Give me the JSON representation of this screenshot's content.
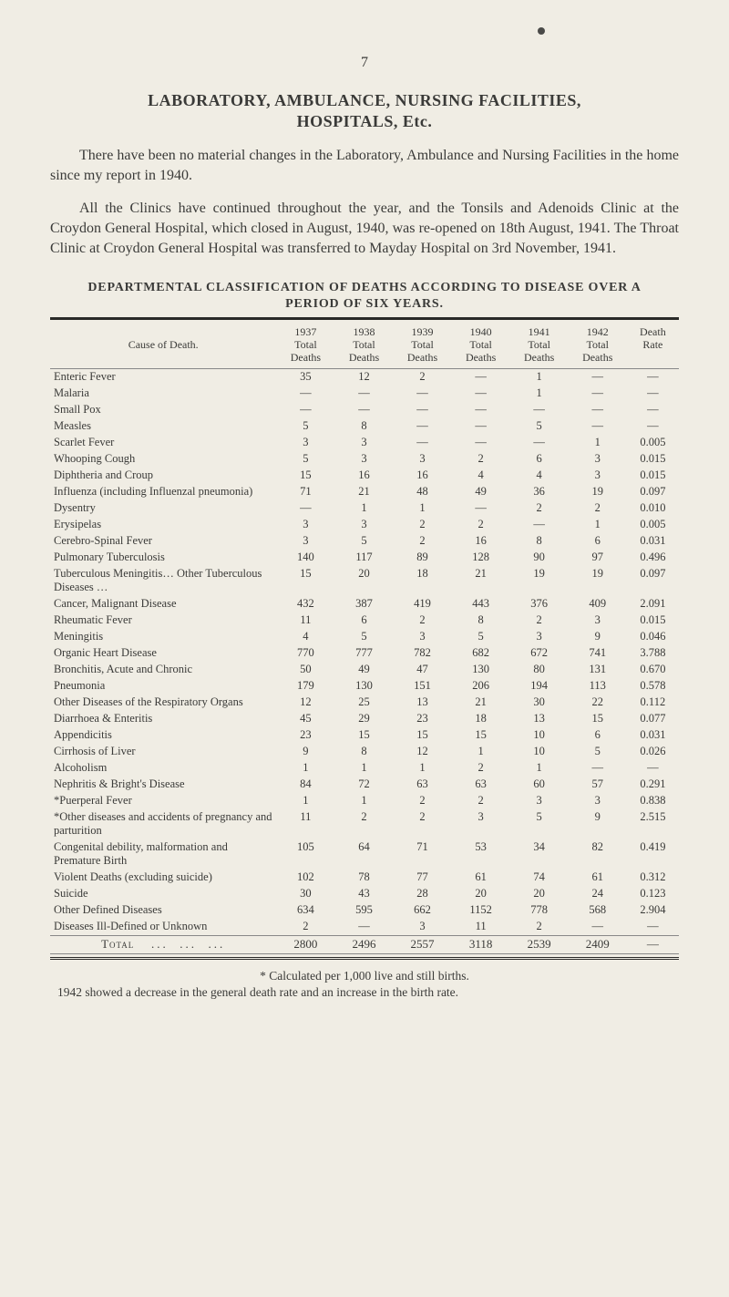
{
  "page_number": "7",
  "heading_line1": "LABORATORY, AMBULANCE, NURSING FACILITIES,",
  "heading_line2": "HOSPITALS, Etc.",
  "paragraphs": [
    "There have been no material changes in the Laboratory, Ambulance and Nursing Facilities in the home since my report in 1940.",
    "All the Clinics have continued throughout the year, and the Tonsils and Adenoids Clinic at the Croydon General Hospital, which closed in August, 1940, was re-opened on 18th August, 1941. The Throat Clinic at Croydon General Hospital was transferred to Mayday Hospital on 3rd November, 1941."
  ],
  "section_title_line1": "DEPARTMENTAL CLASSIFICATION OF DEATHS ACCORDING TO DISEASE OVER A",
  "section_title_line2": "PERIOD OF SIX YEARS.",
  "table": {
    "header_cause": "Cause of Death.",
    "header_years": [
      {
        "year": "1937",
        "sub": "Total\nDeaths"
      },
      {
        "year": "1938",
        "sub": "Total\nDeaths"
      },
      {
        "year": "1939",
        "sub": "Total\nDeaths"
      },
      {
        "year": "1940",
        "sub": "Total\nDeaths"
      },
      {
        "year": "1941",
        "sub": "Total\nDeaths"
      },
      {
        "year": "1942",
        "sub": "Total\nDeaths"
      }
    ],
    "header_rate": "Death\nRate",
    "rows": [
      {
        "cause": "Enteric Fever",
        "v": [
          "35",
          "12",
          "2",
          "—",
          "1",
          "—",
          "—"
        ]
      },
      {
        "cause": "Malaria",
        "v": [
          "—",
          "—",
          "—",
          "—",
          "1",
          "—",
          "—"
        ]
      },
      {
        "cause": "Small Pox",
        "v": [
          "—",
          "—",
          "—",
          "—",
          "—",
          "—",
          "—"
        ]
      },
      {
        "cause": "Measles",
        "v": [
          "5",
          "8",
          "—",
          "—",
          "5",
          "—",
          "—"
        ]
      },
      {
        "cause": "Scarlet Fever",
        "v": [
          "3",
          "3",
          "—",
          "—",
          "—",
          "1",
          "0.005"
        ]
      },
      {
        "cause": "Whooping Cough",
        "v": [
          "5",
          "3",
          "3",
          "2",
          "6",
          "3",
          "0.015"
        ]
      },
      {
        "cause": "Diphtheria and Croup",
        "v": [
          "15",
          "16",
          "16",
          "4",
          "4",
          "3",
          "0.015"
        ]
      },
      {
        "cause": "Influenza (including Influenzal pneumonia)",
        "v": [
          "71",
          "21",
          "48",
          "49",
          "36",
          "19",
          "0.097"
        ]
      },
      {
        "cause": "Dysentry",
        "v": [
          "—",
          "1",
          "1",
          "—",
          "2",
          "2",
          "0.010"
        ]
      },
      {
        "cause": "Erysipelas",
        "v": [
          "3",
          "3",
          "2",
          "2",
          "—",
          "1",
          "0.005"
        ]
      },
      {
        "cause": "Cerebro-Spinal Fever",
        "v": [
          "3",
          "5",
          "2",
          "16",
          "8",
          "6",
          "0.031"
        ]
      },
      {
        "cause": "Pulmonary Tuberculosis",
        "v": [
          "140",
          "117",
          "89",
          "128",
          "90",
          "97",
          "0.496"
        ]
      },
      {
        "cause": "Tuberculous Meningitis… Other Tuberculous Diseases …",
        "v": [
          "15",
          "20",
          "18",
          "21",
          "19",
          "19",
          "0.097"
        ]
      },
      {
        "cause": "Cancer, Malignant Disease",
        "v": [
          "432",
          "387",
          "419",
          "443",
          "376",
          "409",
          "2.091"
        ]
      },
      {
        "cause": "Rheumatic Fever",
        "v": [
          "11",
          "6",
          "2",
          "8",
          "2",
          "3",
          "0.015"
        ]
      },
      {
        "cause": "Meningitis",
        "v": [
          "4",
          "5",
          "3",
          "5",
          "3",
          "9",
          "0.046"
        ]
      },
      {
        "cause": "Organic Heart Disease",
        "v": [
          "770",
          "777",
          "782",
          "682",
          "672",
          "741",
          "3.788"
        ]
      },
      {
        "cause": "Bronchitis, Acute and Chronic",
        "v": [
          "50",
          "49",
          "47",
          "130",
          "80",
          "131",
          "0.670"
        ]
      },
      {
        "cause": "Pneumonia",
        "v": [
          "179",
          "130",
          "151",
          "206",
          "194",
          "113",
          "0.578"
        ]
      },
      {
        "cause": "Other Diseases of the Respiratory Organs",
        "v": [
          "12",
          "25",
          "13",
          "21",
          "30",
          "22",
          "0.112"
        ]
      },
      {
        "cause": "Diarrhoea & Enteritis",
        "v": [
          "45",
          "29",
          "23",
          "18",
          "13",
          "15",
          "0.077"
        ]
      },
      {
        "cause": "Appendicitis",
        "v": [
          "23",
          "15",
          "15",
          "15",
          "10",
          "6",
          "0.031"
        ]
      },
      {
        "cause": "Cirrhosis of Liver",
        "v": [
          "9",
          "8",
          "12",
          "1",
          "10",
          "5",
          "0.026"
        ]
      },
      {
        "cause": "Alcoholism",
        "v": [
          "1",
          "1",
          "1",
          "2",
          "1",
          "—",
          "—"
        ]
      },
      {
        "cause": "Nephritis & Bright's Disease",
        "v": [
          "84",
          "72",
          "63",
          "63",
          "60",
          "57",
          "0.291"
        ]
      },
      {
        "cause": "*Puerperal Fever",
        "v": [
          "1",
          "1",
          "2",
          "2",
          "3",
          "3",
          "0.838"
        ]
      },
      {
        "cause": "*Other diseases and accidents of pregnancy and parturition",
        "v": [
          "11",
          "2",
          "2",
          "3",
          "5",
          "9",
          "2.515"
        ]
      },
      {
        "cause": "Congenital debility, malformation and Premature Birth",
        "v": [
          "105",
          "64",
          "71",
          "53",
          "34",
          "82",
          "0.419"
        ]
      },
      {
        "cause": "Violent Deaths (excluding suicide)",
        "v": [
          "102",
          "78",
          "77",
          "61",
          "74",
          "61",
          "0.312"
        ]
      },
      {
        "cause": "Suicide",
        "v": [
          "30",
          "43",
          "28",
          "20",
          "20",
          "24",
          "0.123"
        ]
      },
      {
        "cause": "Other Defined Diseases",
        "v": [
          "634",
          "595",
          "662",
          "1152",
          "778",
          "568",
          "2.904"
        ]
      },
      {
        "cause": "Diseases Ill-Defined or Unknown",
        "v": [
          "2",
          "—",
          "3",
          "11",
          "2",
          "—",
          "—"
        ]
      }
    ],
    "total_label": "Total",
    "totals": [
      "2800",
      "2496",
      "2557",
      "3118",
      "2539",
      "2409",
      "—"
    ]
  },
  "footnote_line1": "* Calculated per 1,000 live and still births.",
  "footnote_line2": "1942 showed a decrease in the general death rate and an increase in the birth rate.",
  "styling": {
    "bg_color": "#f0ede4",
    "text_color": "#3a3a38",
    "rule_color": "#2a2a28",
    "grid_color": "#888888",
    "body_font_size": 16,
    "table_font_size": 12.5,
    "heading_font_size": 18,
    "section_title_font_size": 14,
    "footnote_font_size": 13.5
  }
}
